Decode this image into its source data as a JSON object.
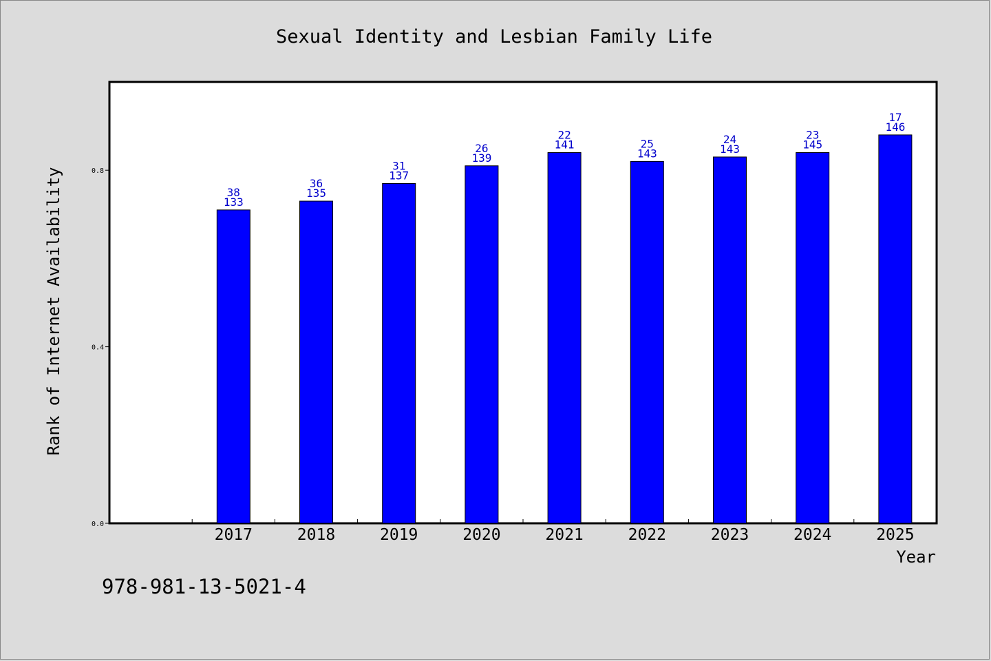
{
  "chart_data": {
    "type": "bar",
    "title": "Sexual Identity and Lesbian Family Life",
    "xlabel": "Year",
    "ylabel": "Rank of Internet Availability",
    "categories": [
      "2017",
      "2018",
      "2019",
      "2020",
      "2021",
      "2022",
      "2023",
      "2024",
      "2025"
    ],
    "values": [
      0.71,
      0.73,
      0.77,
      0.81,
      0.84,
      0.82,
      0.83,
      0.84,
      0.88
    ],
    "top_labels": [
      "38",
      "36",
      "31",
      "26",
      "22",
      "25",
      "24",
      "23",
      "17"
    ],
    "bottom_labels": [
      "133",
      "135",
      "137",
      "139",
      "141",
      "143",
      "143",
      "145",
      "146"
    ],
    "yticks": [
      "0.0",
      "0.4",
      "0.8"
    ],
    "ytick_values": [
      0.0,
      0.4,
      0.8
    ],
    "ylim": [
      0,
      1.0
    ],
    "grid": false,
    "bar_color": "#0000ff",
    "label_color": "#0000cc"
  },
  "footer": {
    "isbn": "978-981-13-5021-4"
  }
}
